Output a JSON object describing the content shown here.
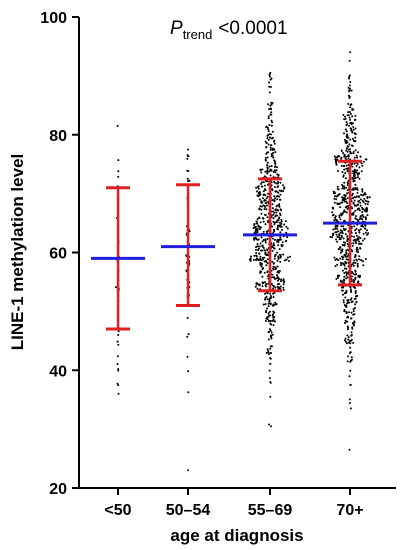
{
  "chart_data": {
    "type": "scatter",
    "subtype": "dot-plot with mean and SD bars",
    "annotation": {
      "prefix": "P",
      "subscript": "trend",
      "value": "<0.0001"
    },
    "xlabel": "age at diagnosis",
    "ylabel": "LINE-1 methylation level",
    "ylim": [
      20,
      100
    ],
    "yticks": [
      "20",
      "40",
      "60",
      "80",
      "100"
    ],
    "categories": [
      "<50",
      "50–54",
      "55–69",
      "70+"
    ],
    "groups": [
      {
        "category": "<50",
        "mean": 59.0,
        "sd_low": 47.0,
        "sd_high": 71.0,
        "n": 40,
        "min": 36.0,
        "max": 81.5
      },
      {
        "category": "50–54",
        "mean": 61.0,
        "sd_low": 51.0,
        "sd_high": 71.5,
        "n": 55,
        "min": 23.0,
        "max": 77.5
      },
      {
        "category": "55–69",
        "mean": 63.0,
        "sd_low": 53.5,
        "sd_high": 72.5,
        "n": 700,
        "min": 30.5,
        "max": 90.5
      },
      {
        "category": "70+",
        "mean": 65.0,
        "sd_low": 54.5,
        "sd_high": 75.5,
        "n": 800,
        "min": 26.5,
        "max": 94.0
      }
    ],
    "colors": {
      "points": "#000000",
      "mean_line": "#1f1fdc",
      "sd_bars": "#e02020",
      "axis": "#000000"
    },
    "grid": false,
    "legend": "none"
  }
}
